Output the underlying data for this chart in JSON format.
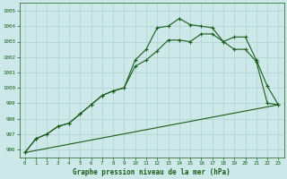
{
  "xlabel": "Graphe pression niveau de la mer (hPa)",
  "background_color": "#cce8e8",
  "grid_color": "#b0d0d0",
  "line_color": "#1a5c1a",
  "xlim": [
    -0.5,
    23.5
  ],
  "ylim": [
    995.5,
    1005.5
  ],
  "yticks": [
    996,
    997,
    998,
    999,
    1000,
    1001,
    1002,
    1003,
    1004,
    1005
  ],
  "xticks": [
    0,
    1,
    2,
    3,
    4,
    5,
    6,
    7,
    8,
    9,
    10,
    11,
    12,
    13,
    14,
    15,
    16,
    17,
    18,
    19,
    20,
    21,
    22,
    23
  ],
  "line1_x": [
    0,
    1,
    2,
    3,
    4,
    5,
    6,
    7,
    8,
    9,
    10,
    11,
    12,
    13,
    14,
    15,
    16,
    17,
    18,
    19,
    20,
    21,
    22,
    23
  ],
  "line1_y": [
    995.8,
    996.7,
    997.0,
    997.5,
    997.7,
    998.3,
    998.9,
    999.5,
    999.8,
    1000.0,
    1001.8,
    1002.5,
    1003.9,
    1004.0,
    1004.5,
    1004.1,
    1004.0,
    1003.9,
    1003.0,
    1002.5,
    1002.5,
    1001.7,
    999.0,
    998.9
  ],
  "line2_x": [
    0,
    1,
    2,
    3,
    4,
    5,
    6,
    7,
    8,
    9,
    10,
    11,
    12,
    13,
    14,
    15,
    16,
    17,
    18,
    19,
    20,
    21,
    22,
    23
  ],
  "line2_y": [
    995.8,
    996.7,
    997.0,
    997.5,
    997.7,
    998.3,
    998.9,
    999.5,
    999.8,
    1000.0,
    1001.4,
    1001.8,
    1002.4,
    1003.1,
    1003.1,
    1003.0,
    1003.5,
    1003.5,
    1003.0,
    1003.3,
    1003.3,
    1001.8,
    1000.1,
    998.9
  ],
  "line3_x": [
    0,
    23
  ],
  "line3_y": [
    995.8,
    998.9
  ]
}
